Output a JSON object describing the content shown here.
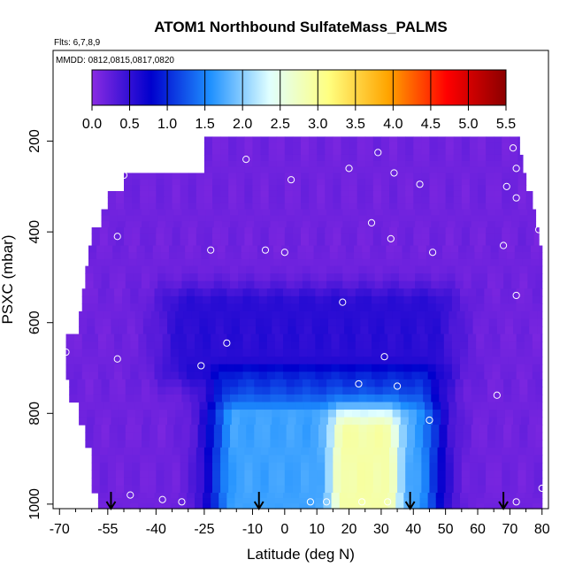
{
  "chart_data": {
    "type": "heatmap",
    "title": "ATOM1 Northbound SulfateMass_PALMS",
    "subtitle": "Flts: 6,7,8,9",
    "annotation": "MMDD: 0812,0815,0817,0820",
    "xlabel": "Latitude (deg N)",
    "ylabel": "PSXC (mbar)",
    "xlim": [
      -72,
      82
    ],
    "ylim": [
      1010,
      0
    ],
    "x_ticks": [
      -70,
      -55,
      -40,
      -25,
      -10,
      0,
      10,
      20,
      30,
      40,
      50,
      60,
      70,
      80
    ],
    "x_minor_ticks": [
      -65,
      -60,
      -50,
      -45,
      -35,
      -30,
      -20,
      -15,
      -5,
      5,
      15,
      25,
      35,
      45,
      55,
      65,
      75
    ],
    "y_ticks": [
      200,
      400,
      600,
      800,
      1000
    ],
    "colorbar": {
      "min": 0.0,
      "max": 5.5,
      "ticks": [
        "0.0",
        "0.5",
        "1.0",
        "1.5",
        "2.0",
        "2.5",
        "3.0",
        "3.5",
        "4.0",
        "4.5",
        "5.0",
        "5.5"
      ],
      "colors": [
        "#8a2be2",
        "#0000cd",
        "#1e90ff",
        "#e0ffff",
        "#ffff80",
        "#ffa500",
        "#ff0000",
        "#8b0000"
      ]
    },
    "grid": false,
    "domain": {
      "pressure_levels": [
        210,
        250,
        290,
        330,
        370,
        410,
        450,
        500,
        550,
        600,
        650,
        700,
        750,
        800,
        850,
        900,
        950,
        1000
      ],
      "lat_min": [
        -25,
        -25,
        -50,
        -55,
        -57,
        -60,
        -61,
        -62,
        -63,
        -64,
        -68,
        -68,
        -67,
        -64,
        -62,
        -60,
        -60,
        -58
      ],
      "lat_max": [
        73,
        74,
        75,
        77,
        78,
        79,
        80,
        80,
        80,
        80,
        80,
        80,
        80,
        80,
        80,
        80,
        80,
        80
      ]
    },
    "field_features": [
      {
        "name": "background",
        "value": 0.15
      },
      {
        "name": "midlevel-band",
        "lat": [
          -30,
          45
        ],
        "pressure": [
          560,
          700
        ],
        "value": 0.55
      },
      {
        "name": "tropical-plume",
        "lat": [
          -15,
          40
        ],
        "pressure": [
          700,
          1010
        ],
        "value": 1.7
      },
      {
        "name": "core",
        "lat": [
          18,
          32
        ],
        "pressure": [
          840,
          1000
        ],
        "value": 2.9
      }
    ],
    "samples": [
      {
        "lat": -68,
        "p": 665
      },
      {
        "lat": -56,
        "p": 300
      },
      {
        "lat": -50,
        "p": 275
      },
      {
        "lat": -52,
        "p": 410
      },
      {
        "lat": -52,
        "p": 680
      },
      {
        "lat": -48,
        "p": 980
      },
      {
        "lat": -38,
        "p": 990
      },
      {
        "lat": -32,
        "p": 995
      },
      {
        "lat": -26,
        "p": 695
      },
      {
        "lat": -23,
        "p": 440
      },
      {
        "lat": -18,
        "p": 645
      },
      {
        "lat": -12,
        "p": 240
      },
      {
        "lat": -6,
        "p": 440
      },
      {
        "lat": 0,
        "p": 445
      },
      {
        "lat": 2,
        "p": 285
      },
      {
        "lat": 8,
        "p": 995
      },
      {
        "lat": 13,
        "p": 995
      },
      {
        "lat": 18,
        "p": 555
      },
      {
        "lat": 20,
        "p": 260
      },
      {
        "lat": 23,
        "p": 735
      },
      {
        "lat": 24,
        "p": 995
      },
      {
        "lat": 27,
        "p": 380
      },
      {
        "lat": 29,
        "p": 225
      },
      {
        "lat": 31,
        "p": 675
      },
      {
        "lat": 32,
        "p": 995
      },
      {
        "lat": 33,
        "p": 415
      },
      {
        "lat": 34,
        "p": 270
      },
      {
        "lat": 35,
        "p": 740
      },
      {
        "lat": 45,
        "p": 815
      },
      {
        "lat": 46,
        "p": 445
      },
      {
        "lat": 42,
        "p": 295
      },
      {
        "lat": 66,
        "p": 760
      },
      {
        "lat": 68,
        "p": 430
      },
      {
        "lat": 69,
        "p": 300
      },
      {
        "lat": 71,
        "p": 215
      },
      {
        "lat": 72,
        "p": 260
      },
      {
        "lat": 72,
        "p": 325
      },
      {
        "lat": 72,
        "p": 540
      },
      {
        "lat": 72,
        "p": 995
      },
      {
        "lat": 79,
        "p": 395
      },
      {
        "lat": 80,
        "p": 965
      }
    ],
    "flight_markers_lat": [
      -54,
      -8,
      39,
      68
    ]
  }
}
